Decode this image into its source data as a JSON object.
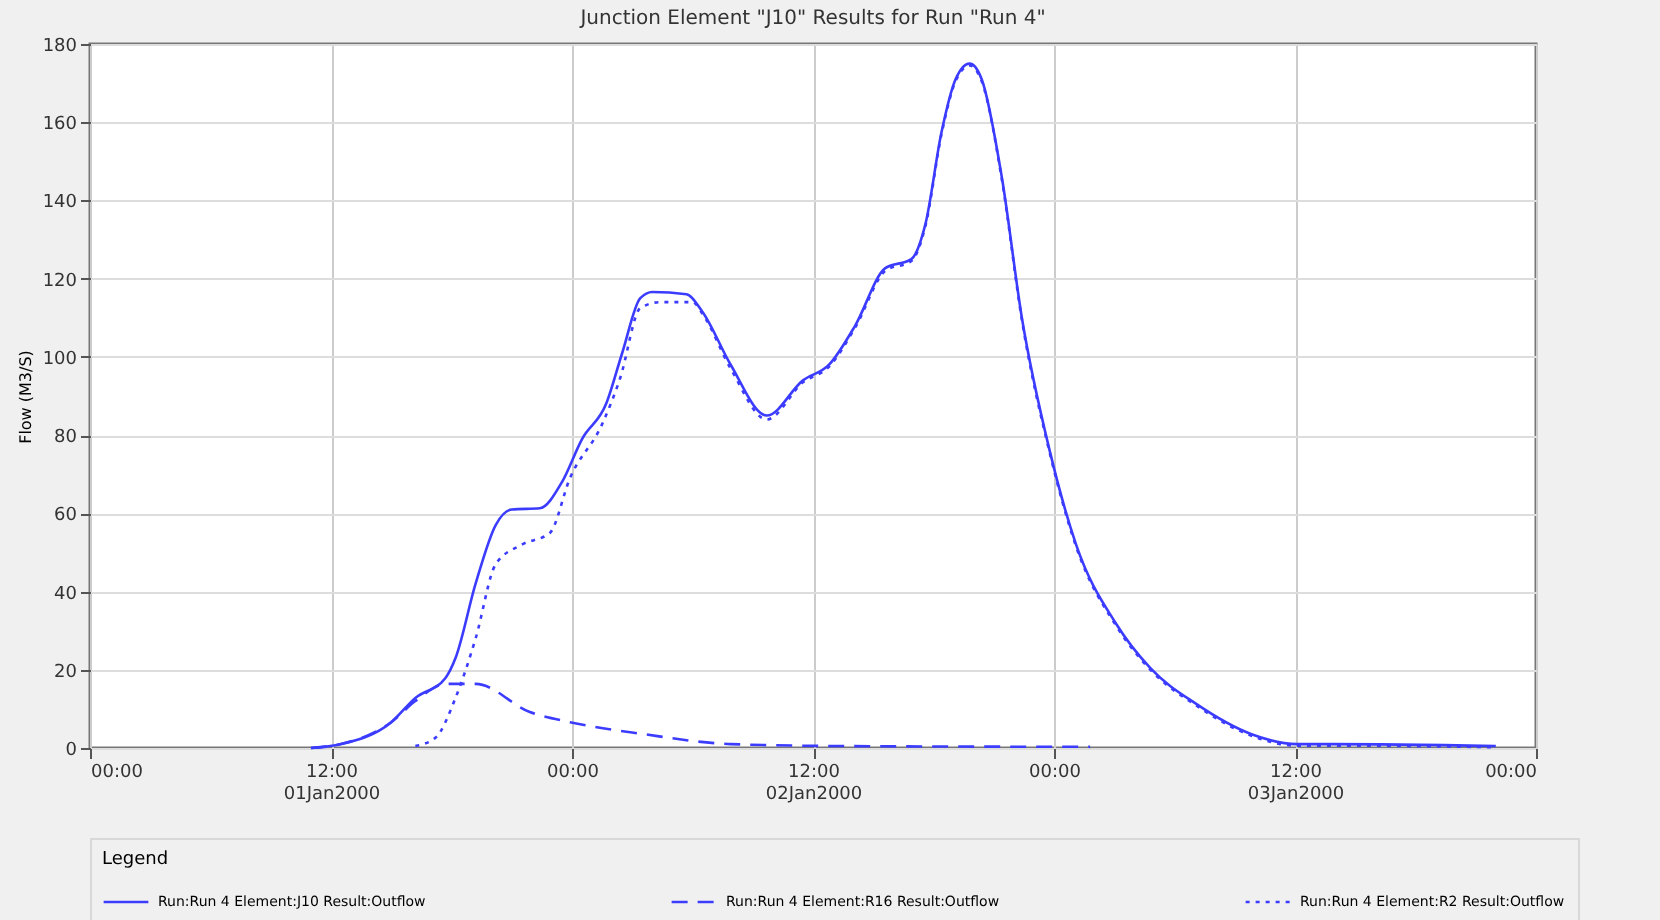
{
  "chart_data": {
    "type": "line",
    "title": "Junction Element \"J10\" Results for Run \"Run 4\"",
    "ylabel": "Flow (M3/S)",
    "legend_title": "Legend",
    "legend": "bottom",
    "grid": true,
    "marker": "none",
    "xlim": [
      "2000-01-01T00:00",
      "2000-01-04T00:00"
    ],
    "xticks": [
      {
        "value": "2000-01-01T00:00",
        "label": "00:00"
      },
      {
        "value": "2000-01-01T12:00",
        "label": "12:00\n01Jan2000"
      },
      {
        "value": "2000-01-02T00:00",
        "label": "00:00"
      },
      {
        "value": "2000-01-02T12:00",
        "label": "12:00\n02Jan2000"
      },
      {
        "value": "2000-01-03T00:00",
        "label": "00:00"
      },
      {
        "value": "2000-01-03T12:00",
        "label": "12:00\n03Jan2000"
      },
      {
        "value": "2000-01-04T00:00",
        "label": "00:00"
      }
    ],
    "ylim": [
      0,
      180
    ],
    "yticks": [
      0,
      20,
      40,
      60,
      80,
      100,
      120,
      140,
      160,
      180
    ],
    "series": [
      {
        "name": "Run:Run 4 Element:J10 Result:Outflow",
        "color": "#3c3cff",
        "line_style": "solid",
        "x": [
          "2000-01-01T11:00",
          "2000-01-01T12:30",
          "2000-01-01T15:00",
          "2000-01-01T16:12",
          "2000-01-01T17:42",
          "2000-01-01T18:12",
          "2000-01-01T19:12",
          "2000-01-01T20:12",
          "2000-01-01T21:00",
          "2000-01-01T22:24",
          "2000-01-01T23:30",
          "2000-01-02T00:30",
          "2000-01-02T01:42",
          "2000-01-02T02:30",
          "2000-01-02T03:24",
          "2000-01-02T04:00",
          "2000-01-02T05:42",
          "2000-01-02T06:30",
          "2000-01-02T07:54",
          "2000-01-02T09:42",
          "2000-01-02T11:30",
          "2000-01-02T12:48",
          "2000-01-02T14:06",
          "2000-01-02T15:36",
          "2000-01-02T16:54",
          "2000-01-02T17:36",
          "2000-01-02T18:24",
          "2000-01-02T19:06",
          "2000-01-02T19:48",
          "2000-01-02T20:24",
          "2000-01-02T21:24",
          "2000-01-02T22:24",
          "2000-01-02T23:48",
          "2000-01-03T01:06",
          "2000-01-03T03:06",
          "2000-01-03T04:48",
          "2000-01-03T07:06",
          "2000-01-03T09:48",
          "2000-01-03T12:06",
          "2000-01-03T13:48",
          "2000-01-03T22:00"
        ],
        "values": [
          0,
          1,
          6.6,
          12.8,
          17.9,
          23,
          42,
          57,
          61,
          61.3,
          68,
          79,
          88,
          101,
          115,
          116.6,
          116,
          111.5,
          98,
          85,
          94,
          98,
          108,
          122.7,
          125,
          134,
          157.5,
          171,
          175,
          171,
          146,
          110,
          75.7,
          52,
          31.7,
          20.4,
          11.2,
          3.6,
          1,
          1,
          0.5
        ]
      },
      {
        "name": "Run:Run 4 Element:R16 Result:Outflow",
        "color": "#3c3cff",
        "line_style": "dashed",
        "x": [
          "2000-01-01T11:00",
          "2000-01-01T12:30",
          "2000-01-01T15:00",
          "2000-01-01T16:12",
          "2000-01-01T17:42",
          "2000-01-01T19:12",
          "2000-01-01T21:54",
          "2000-01-01T23:54",
          "2000-01-02T03:30",
          "2000-01-02T07:54",
          "2000-01-02T13:30",
          "2000-01-03T01:48"
        ],
        "values": [
          0,
          1,
          6.6,
          12,
          16.4,
          16.4,
          9.2,
          6.6,
          3.6,
          1,
          0.5,
          0.3
        ]
      },
      {
        "name": "Run:Run 4 Element:R2 Result:Outflow",
        "color": "#3c3cff",
        "line_style": "dotted",
        "x": [
          "2000-01-01T16:12",
          "2000-01-01T17:12",
          "2000-01-01T18:12",
          "2000-01-01T19:12",
          "2000-01-01T20:12",
          "2000-01-01T21:30",
          "2000-01-01T22:54",
          "2000-01-01T23:54",
          "2000-01-02T01:30",
          "2000-01-02T02:24",
          "2000-01-02T03:24",
          "2000-01-02T04:24",
          "2000-01-02T06:00",
          "2000-01-02T06:30",
          "2000-01-02T07:54",
          "2000-01-02T09:42",
          "2000-01-02T11:30",
          "2000-01-02T12:48",
          "2000-01-02T14:06",
          "2000-01-02T15:36",
          "2000-01-02T16:54",
          "2000-01-02T17:36",
          "2000-01-02T18:24",
          "2000-01-02T19:06",
          "2000-01-02T19:48",
          "2000-01-02T20:24",
          "2000-01-02T21:24",
          "2000-01-02T22:24",
          "2000-01-02T23:48",
          "2000-01-03T01:06",
          "2000-01-03T03:06",
          "2000-01-03T04:48",
          "2000-01-03T07:06",
          "2000-01-03T09:48",
          "2000-01-03T12:06",
          "2000-01-03T13:48",
          "2000-01-03T22:00"
        ],
        "values": [
          0.5,
          2.6,
          12.8,
          28,
          47,
          52,
          55,
          69,
          82.8,
          94.6,
          112.5,
          114,
          114,
          111,
          97,
          84,
          93.5,
          97.5,
          107.5,
          122,
          124.5,
          133.5,
          157,
          170.5,
          174.5,
          170.5,
          145.5,
          109.5,
          75.2,
          51.5,
          31.2,
          20,
          10.8,
          3.2,
          0.6,
          0.6,
          0.2
        ]
      }
    ]
  }
}
